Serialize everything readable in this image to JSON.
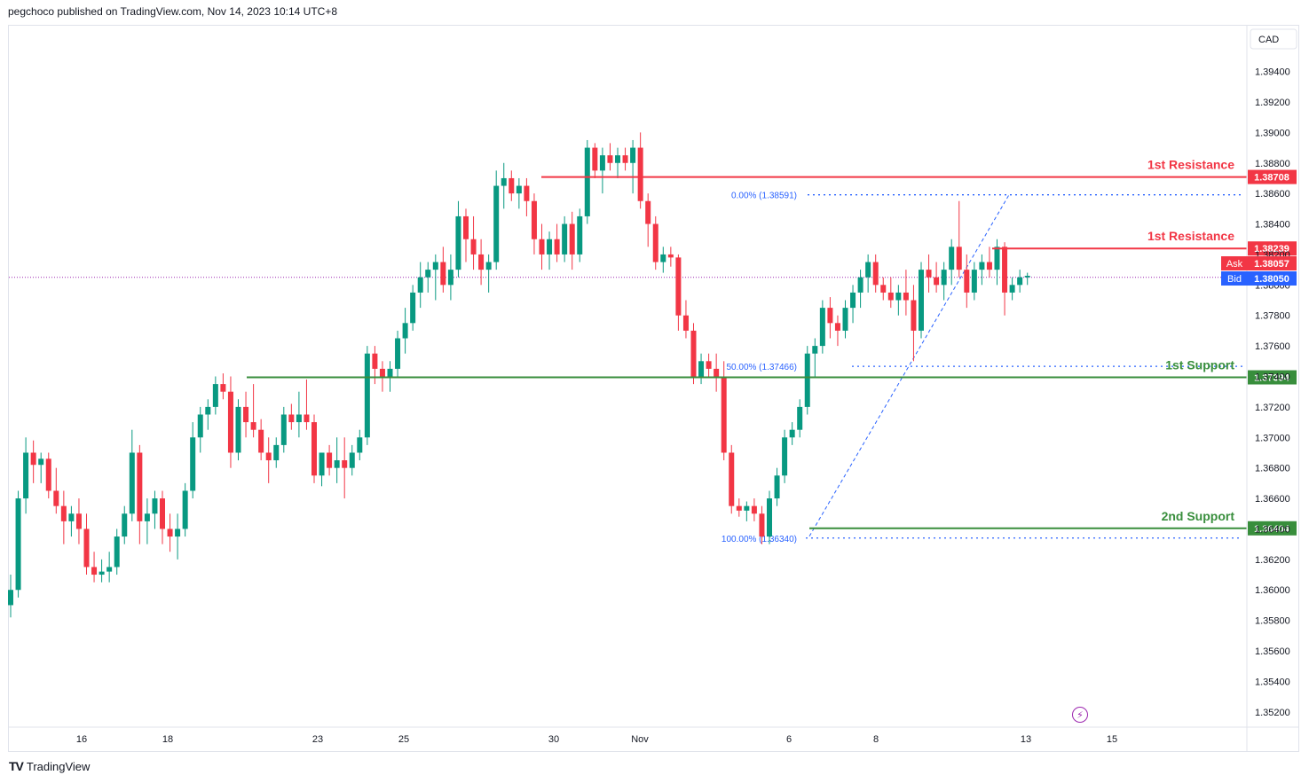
{
  "header": {
    "published_by": "pegchoco published on TradingView.com, Nov 14, 2023 10:14 UTC+8"
  },
  "footer": {
    "logo_mark": "TV",
    "brand": "TradingView"
  },
  "colors": {
    "up": "#089981",
    "down": "#f23645",
    "resistance": "#f23645",
    "support": "#388e3c",
    "fib": "#2962ff",
    "ask": "#f23645",
    "bid": "#2962ff"
  },
  "chart_data": {
    "type": "candlestick",
    "currency": "CAD",
    "ylim": [
      1.351,
      1.397
    ],
    "y_ticks": [
      "1.35200",
      "1.35400",
      "1.35600",
      "1.35800",
      "1.36000",
      "1.36200",
      "1.36400",
      "1.36600",
      "1.36800",
      "1.37000",
      "1.37200",
      "1.37400",
      "1.37600",
      "1.37800",
      "1.38000",
      "1.38200",
      "1.38400",
      "1.38600",
      "1.38800",
      "1.39000",
      "1.39200",
      "1.39400"
    ],
    "x_ticks": [
      "16",
      "18",
      "23",
      "25",
      "30",
      "Nov",
      "6",
      "8",
      "13",
      "15"
    ],
    "ask": {
      "label": "Ask",
      "value": "1.38057"
    },
    "bid": {
      "label": "Bid",
      "value": "1.38050"
    },
    "levels": [
      {
        "label": "1st Resistance",
        "value": 1.38708,
        "tag": "1.38708",
        "kind": "resistance"
      },
      {
        "label": "1st Resistance",
        "value": 1.38239,
        "tag": "1.38239",
        "kind": "resistance"
      },
      {
        "label": "1st Support",
        "value": 1.37394,
        "tag": "1.37394",
        "kind": "support"
      },
      {
        "label": "2nd Support",
        "value": 1.36404,
        "tag": "1.36404",
        "kind": "support"
      }
    ],
    "fib": [
      {
        "label": "0.00% (1.38591)",
        "value": 1.38591
      },
      {
        "label": "50.00% (1.37466)",
        "value": 1.37466
      },
      {
        "label": "100.00% (1.36340)",
        "value": 1.3634
      }
    ],
    "fib_line": {
      "from": 1.3634,
      "to": 1.38591
    },
    "candles": [
      [
        1.359,
        1.361,
        1.3582,
        1.36
      ],
      [
        1.36,
        1.3665,
        1.3595,
        1.366
      ],
      [
        1.366,
        1.37,
        1.365,
        1.369
      ],
      [
        1.369,
        1.3698,
        1.367,
        1.3682
      ],
      [
        1.3682,
        1.369,
        1.367,
        1.3686
      ],
      [
        1.3686,
        1.369,
        1.366,
        1.3665
      ],
      [
        1.3665,
        1.368,
        1.365,
        1.3655
      ],
      [
        1.3655,
        1.3665,
        1.363,
        1.3645
      ],
      [
        1.3645,
        1.3655,
        1.3635,
        1.365
      ],
      [
        1.365,
        1.366,
        1.363,
        1.364
      ],
      [
        1.364,
        1.365,
        1.361,
        1.3615
      ],
      [
        1.3615,
        1.3625,
        1.3605,
        1.361
      ],
      [
        1.361,
        1.362,
        1.3605,
        1.3612
      ],
      [
        1.3612,
        1.3625,
        1.3605,
        1.3615
      ],
      [
        1.3615,
        1.364,
        1.361,
        1.3635
      ],
      [
        1.3635,
        1.3655,
        1.363,
        1.365
      ],
      [
        1.365,
        1.3705,
        1.3645,
        1.369
      ],
      [
        1.369,
        1.3695,
        1.363,
        1.3645
      ],
      [
        1.3645,
        1.366,
        1.363,
        1.365
      ],
      [
        1.365,
        1.3665,
        1.364,
        1.366
      ],
      [
        1.366,
        1.3665,
        1.363,
        1.364
      ],
      [
        1.364,
        1.365,
        1.3625,
        1.3635
      ],
      [
        1.3635,
        1.365,
        1.362,
        1.364
      ],
      [
        1.364,
        1.367,
        1.3635,
        1.3665
      ],
      [
        1.3665,
        1.371,
        1.366,
        1.37
      ],
      [
        1.37,
        1.372,
        1.369,
        1.3715
      ],
      [
        1.3715,
        1.3725,
        1.3705,
        1.372
      ],
      [
        1.372,
        1.374,
        1.3715,
        1.3735
      ],
      [
        1.3735,
        1.3742,
        1.3725,
        1.373
      ],
      [
        1.373,
        1.374,
        1.368,
        1.369
      ],
      [
        1.369,
        1.3725,
        1.3685,
        1.372
      ],
      [
        1.372,
        1.373,
        1.37,
        1.371
      ],
      [
        1.371,
        1.3735,
        1.37,
        1.3705
      ],
      [
        1.3705,
        1.3712,
        1.3685,
        1.369
      ],
      [
        1.369,
        1.37,
        1.367,
        1.3685
      ],
      [
        1.3685,
        1.37,
        1.368,
        1.3695
      ],
      [
        1.3695,
        1.372,
        1.369,
        1.3715
      ],
      [
        1.3715,
        1.3722,
        1.3705,
        1.371
      ],
      [
        1.371,
        1.373,
        1.37,
        1.3715
      ],
      [
        1.3715,
        1.3738,
        1.3705,
        1.371
      ],
      [
        1.371,
        1.3715,
        1.367,
        1.3675
      ],
      [
        1.3675,
        1.369,
        1.3668,
        1.369
      ],
      [
        1.369,
        1.3695,
        1.3675,
        1.368
      ],
      [
        1.368,
        1.37,
        1.367,
        1.3685
      ],
      [
        1.3685,
        1.37,
        1.366,
        1.368
      ],
      [
        1.368,
        1.3695,
        1.3675,
        1.369
      ],
      [
        1.369,
        1.3705,
        1.3685,
        1.37
      ],
      [
        1.37,
        1.376,
        1.3695,
        1.3755
      ],
      [
        1.3755,
        1.376,
        1.3735,
        1.3745
      ],
      [
        1.3745,
        1.375,
        1.373,
        1.374
      ],
      [
        1.374,
        1.375,
        1.373,
        1.3745
      ],
      [
        1.3745,
        1.377,
        1.374,
        1.3765
      ],
      [
        1.3765,
        1.3785,
        1.3755,
        1.3775
      ],
      [
        1.3775,
        1.38,
        1.377,
        1.3795
      ],
      [
        1.3795,
        1.3815,
        1.3785,
        1.3805
      ],
      [
        1.3805,
        1.3815,
        1.3795,
        1.381
      ],
      [
        1.381,
        1.382,
        1.379,
        1.3815
      ],
      [
        1.3815,
        1.3825,
        1.3795,
        1.38
      ],
      [
        1.38,
        1.382,
        1.379,
        1.381
      ],
      [
        1.381,
        1.3855,
        1.3805,
        1.3845
      ],
      [
        1.3845,
        1.385,
        1.3815,
        1.383
      ],
      [
        1.383,
        1.3845,
        1.381,
        1.382
      ],
      [
        1.382,
        1.383,
        1.38,
        1.381
      ],
      [
        1.381,
        1.382,
        1.3795,
        1.3815
      ],
      [
        1.3815,
        1.3875,
        1.381,
        1.3865
      ],
      [
        1.3865,
        1.388,
        1.385,
        1.387
      ],
      [
        1.387,
        1.3875,
        1.3855,
        1.386
      ],
      [
        1.386,
        1.387,
        1.385,
        1.3865
      ],
      [
        1.3865,
        1.387,
        1.3845,
        1.3855
      ],
      [
        1.3855,
        1.386,
        1.382,
        1.383
      ],
      [
        1.383,
        1.384,
        1.381,
        1.382
      ],
      [
        1.382,
        1.3835,
        1.381,
        1.383
      ],
      [
        1.383,
        1.384,
        1.3815,
        1.382
      ],
      [
        1.382,
        1.3845,
        1.3815,
        1.384
      ],
      [
        1.384,
        1.3848,
        1.381,
        1.382
      ],
      [
        1.382,
        1.385,
        1.3815,
        1.3845
      ],
      [
        1.3845,
        1.3895,
        1.384,
        1.389
      ],
      [
        1.389,
        1.3893,
        1.387,
        1.3875
      ],
      [
        1.3875,
        1.389,
        1.386,
        1.3885
      ],
      [
        1.3885,
        1.3893,
        1.3875,
        1.388
      ],
      [
        1.388,
        1.389,
        1.387,
        1.3885
      ],
      [
        1.3885,
        1.389,
        1.3875,
        1.388
      ],
      [
        1.388,
        1.3895,
        1.386,
        1.389
      ],
      [
        1.389,
        1.39,
        1.385,
        1.3855
      ],
      [
        1.3855,
        1.386,
        1.3825,
        1.384
      ],
      [
        1.384,
        1.3845,
        1.381,
        1.3815
      ],
      [
        1.3815,
        1.3825,
        1.3808,
        1.382
      ],
      [
        1.382,
        1.3825,
        1.3812,
        1.3818
      ],
      [
        1.3818,
        1.382,
        1.377,
        1.378
      ],
      [
        1.378,
        1.379,
        1.3765,
        1.377
      ],
      [
        1.377,
        1.3775,
        1.3735,
        1.374
      ],
      [
        1.374,
        1.3755,
        1.3735,
        1.375
      ],
      [
        1.375,
        1.3755,
        1.374,
        1.3745
      ],
      [
        1.3745,
        1.3755,
        1.373,
        1.374
      ],
      [
        1.374,
        1.375,
        1.3685,
        1.369
      ],
      [
        1.369,
        1.3695,
        1.365,
        1.3655
      ],
      [
        1.3655,
        1.366,
        1.3648,
        1.3652
      ],
      [
        1.3652,
        1.3658,
        1.3645,
        1.3655
      ],
      [
        1.3655,
        1.366,
        1.3645,
        1.365
      ],
      [
        1.365,
        1.3655,
        1.363,
        1.3635
      ],
      [
        1.3635,
        1.3665,
        1.363,
        1.366
      ],
      [
        1.366,
        1.368,
        1.3655,
        1.3675
      ],
      [
        1.3675,
        1.3705,
        1.367,
        1.37
      ],
      [
        1.37,
        1.371,
        1.3695,
        1.3705
      ],
      [
        1.3705,
        1.3725,
        1.37,
        1.372
      ],
      [
        1.372,
        1.376,
        1.3715,
        1.3755
      ],
      [
        1.3755,
        1.3765,
        1.374,
        1.376
      ],
      [
        1.376,
        1.379,
        1.3755,
        1.3785
      ],
      [
        1.3785,
        1.3792,
        1.3765,
        1.3775
      ],
      [
        1.3775,
        1.378,
        1.376,
        1.377
      ],
      [
        1.377,
        1.379,
        1.3765,
        1.3785
      ],
      [
        1.3785,
        1.38,
        1.3775,
        1.3795
      ],
      [
        1.3795,
        1.381,
        1.3785,
        1.3805
      ],
      [
        1.3805,
        1.382,
        1.3795,
        1.3815
      ],
      [
        1.3815,
        1.382,
        1.3795,
        1.38
      ],
      [
        1.38,
        1.3805,
        1.379,
        1.3795
      ],
      [
        1.3795,
        1.3805,
        1.3785,
        1.379
      ],
      [
        1.379,
        1.38,
        1.378,
        1.3795
      ],
      [
        1.3795,
        1.381,
        1.378,
        1.379
      ],
      [
        1.379,
        1.38,
        1.375,
        1.377
      ],
      [
        1.377,
        1.3815,
        1.3765,
        1.381
      ],
      [
        1.381,
        1.382,
        1.3795,
        1.3805
      ],
      [
        1.3805,
        1.3815,
        1.3795,
        1.38
      ],
      [
        1.38,
        1.3815,
        1.379,
        1.381
      ],
      [
        1.381,
        1.383,
        1.38,
        1.3825
      ],
      [
        1.3825,
        1.3855,
        1.3805,
        1.381
      ],
      [
        1.381,
        1.382,
        1.3785,
        1.3795
      ],
      [
        1.3795,
        1.3815,
        1.379,
        1.381
      ],
      [
        1.381,
        1.382,
        1.38,
        1.3815
      ],
      [
        1.3815,
        1.3825,
        1.3805,
        1.381
      ],
      [
        1.381,
        1.383,
        1.38,
        1.3825
      ],
      [
        1.3825,
        1.3828,
        1.378,
        1.3795
      ],
      [
        1.3795,
        1.3805,
        1.379,
        1.38
      ],
      [
        1.38,
        1.381,
        1.3795,
        1.3805
      ],
      [
        1.3805,
        1.3808,
        1.38,
        1.3806
      ]
    ]
  }
}
